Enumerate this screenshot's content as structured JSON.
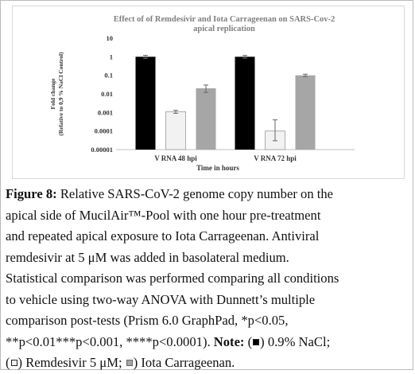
{
  "chart_data": {
    "type": "bar",
    "title_line1": "Effect of  of Remdesivir and Iota Carrageenan on SARS-Cov-2",
    "title_line2": "apical replication",
    "ylabel_line1": "Fold change",
    "ylabel_line2": "(Relative to 0,9 % NaCl Control)",
    "xlabel": "Time in hours",
    "yscale": "log",
    "ylim": [
      1e-05,
      10
    ],
    "yticks": [
      "10",
      "1",
      "0.1",
      "0.01",
      "0.001",
      "0.0001",
      "0.00001"
    ],
    "categories": [
      "V RNA 48 hpi",
      "V RNA 72 hpi"
    ],
    "series": [
      {
        "values": [
          1.0,
          1.0
        ],
        "err_low": [
          0.82,
          0.84
        ],
        "err_high": [
          1.2,
          1.18
        ],
        "color": "#000000"
      },
      {
        "values": [
          0.0011,
          0.0001
        ],
        "err_low": [
          0.0009,
          3e-05
        ],
        "err_high": [
          0.0013,
          0.0004
        ],
        "color": "#f2f2f2"
      },
      {
        "values": [
          0.02,
          0.1
        ],
        "err_low": [
          0.012,
          0.085
        ],
        "err_high": [
          0.03,
          0.115
        ],
        "color": "#a6a6a6"
      }
    ],
    "grid": false,
    "legend": "none"
  },
  "caption": {
    "fig_label": "Figure 8:",
    "line1": " Relative SARS-CoV-2 genome copy number on the",
    "line2": "apical side of MucilAir™-Pool with one hour pre-treatment",
    "line3": "and repeated apical exposure to Iota Carrageenan. Antiviral",
    "line4": "remdesivir at 5 μM was added in basolateral medium.",
    "line5": "Statistical comparison was performed comparing all conditions",
    "line6": "to vehicle using two-way ANOVA with Dunnett’s multiple",
    "line7": "comparison post-tests (Prism 6.0 GraphPad, *p<0.05,",
    "line8a": "**p<0.01***p<0.001, ****p<0.0001). ",
    "note_label": "Note:",
    "note_item1": ") 0.9% NaCl;",
    "note_open1": " (",
    "note_open2": "(",
    "note_item2": ") Remdesivir 5 μM; ",
    "note_item3": ") Iota Carrageenan."
  }
}
